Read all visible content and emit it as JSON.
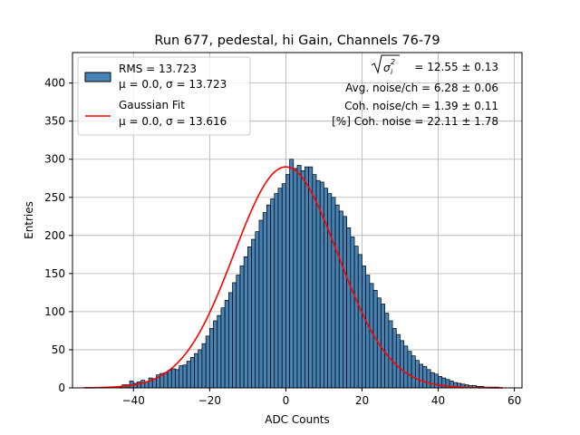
{
  "chart_data": {
    "type": "bar",
    "title": "Run 677, pedestal, hi Gain, Channels 76-79",
    "xlabel": "ADC Counts",
    "ylabel": "Entries",
    "xlim": [
      -56,
      62
    ],
    "ylim": [
      0,
      440
    ],
    "xticks": [
      -40,
      -20,
      0,
      20,
      40,
      60
    ],
    "yticks": [
      0,
      50,
      100,
      150,
      200,
      250,
      300,
      350,
      400
    ],
    "grid": true,
    "bin_start": -53,
    "bin_width": 1,
    "values": [
      0,
      0,
      0,
      0,
      0,
      0,
      0,
      1,
      1,
      1,
      4,
      4,
      9,
      6,
      8,
      10,
      8,
      13,
      12,
      17,
      19,
      20,
      23,
      25,
      24,
      29,
      30,
      35,
      40,
      45,
      50,
      58,
      68,
      78,
      88,
      95,
      105,
      115,
      125,
      138,
      148,
      160,
      172,
      185,
      195,
      205,
      220,
      230,
      240,
      248,
      255,
      262,
      268,
      280,
      300,
      288,
      292,
      285,
      290,
      290,
      280,
      272,
      270,
      262,
      255,
      250,
      240,
      232,
      225,
      210,
      198,
      186,
      175,
      160,
      148,
      137,
      128,
      118,
      110,
      98,
      88,
      78,
      70,
      62,
      55,
      48,
      42,
      36,
      31,
      28,
      24,
      20,
      18,
      15,
      13,
      11,
      9,
      7,
      6,
      5,
      4,
      3,
      3,
      2,
      2,
      1,
      1,
      1,
      1,
      0,
      0
    ],
    "fit": {
      "name": "Gaussian Fit",
      "mu": 0.0,
      "sigma": 13.616,
      "amplitude": 290,
      "x_range": [
        -53,
        57
      ],
      "color": "#ff0000"
    },
    "bar_color": "#4682b4",
    "legend": {
      "placement": "top-left",
      "entries": [
        {
          "line1": "RMS = 13.723",
          "line2": "μ = 0.0, σ = 13.723",
          "kind": "patch"
        },
        {
          "line1": "Gaussian Fit",
          "line2": "μ = 0.0, σ = 13.616",
          "kind": "line"
        }
      ]
    },
    "annotations": {
      "sigma_eq": "= 12.55 ± 0.13",
      "avg_noise": "Avg. noise/ch = 6.28 ± 0.06",
      "coh_noise": "Coh. noise/ch = 1.39 ± 0.11",
      "coh_pct": "[%] Coh. noise = 22.11 ± 1.78"
    }
  }
}
